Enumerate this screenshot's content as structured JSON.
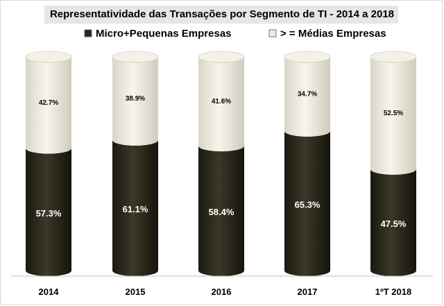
{
  "chart_data": {
    "type": "bar",
    "stacked": true,
    "title": "Representatividade das Transações por Segmento de TI - 2014 a 2018",
    "categories": [
      "2014",
      "2015",
      "2016",
      "2017",
      "1ºT 2018"
    ],
    "series": [
      {
        "name": "Micro+Pequenas Empresas",
        "values": [
          57.3,
          61.1,
          58.4,
          65.3,
          47.5
        ],
        "labels": [
          "57.3%",
          "61.1%",
          "58.4%",
          "65.3%",
          "47.5%"
        ],
        "color": "#2b2a1d"
      },
      {
        "name": "> = Médias Empresas",
        "values": [
          42.7,
          38.9,
          41.6,
          34.7,
          52.5
        ],
        "labels": [
          "42.7%",
          "38.9%",
          "41.6%",
          "34.7%",
          "52.5%"
        ],
        "color": "#efecdf"
      }
    ],
    "ylim": [
      0,
      100
    ],
    "grid": false,
    "legend": "top"
  }
}
